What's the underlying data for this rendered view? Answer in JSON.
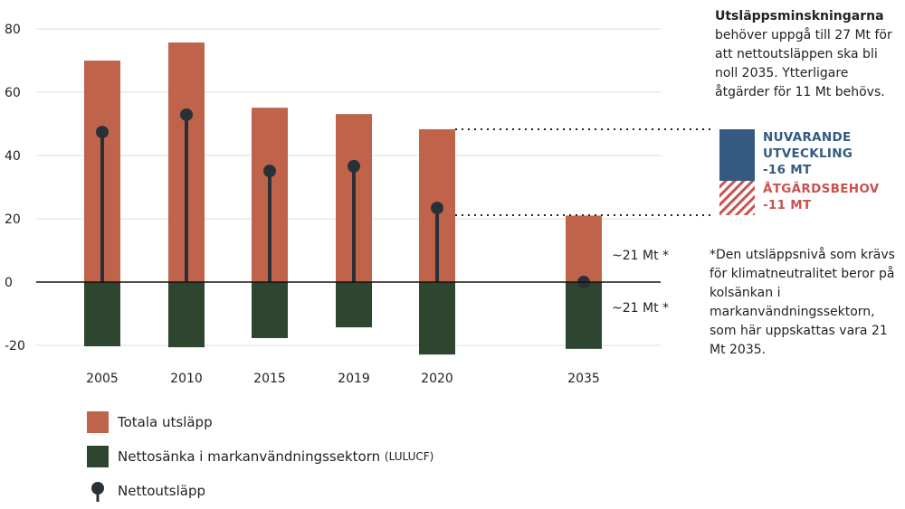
{
  "chart_data": {
    "type": "bar",
    "categories": [
      "2005",
      "2010",
      "2015",
      "2019",
      "2020",
      "2035"
    ],
    "series": [
      {
        "name": "Totala utsläpp",
        "values": [
          70,
          75.7,
          55.1,
          53.1,
          48.3,
          21
        ],
        "color": "#c0634b"
      },
      {
        "name": "Nettosänka i markanvändningssektorn",
        "name_suffix": "(LULUCF)",
        "values": [
          -20.3,
          -20.6,
          -17.7,
          -14.3,
          -22.9,
          -21.1
        ],
        "color": "#2e4630"
      },
      {
        "name": "Nettoutsläpp",
        "values": [
          47.4,
          52.9,
          35.1,
          36.6,
          23.4,
          0
        ],
        "color": "#2a3038",
        "marker": "lollipop"
      }
    ],
    "ylim": [
      -20,
      80
    ],
    "yticks": [
      "80",
      "60",
      "40",
      "20",
      "0",
      "-20"
    ],
    "grid": true,
    "legend": "bottom-left",
    "annotations": {
      "pos_2035": "~21 Mt *",
      "neg_2035": "~21 Mt *",
      "nuvarande": [
        "NUVARANDE",
        "UTVECKLING",
        "-16 MT"
      ],
      "nuvarande_color": "#345a82",
      "atgard": [
        "ÅTGÄRDSBEHOV",
        "-11 MT"
      ],
      "atgard_color": "#c9524e"
    }
  },
  "note": {
    "title": "Utsläppsminskningarna",
    "body": "behöver uppgå till 27 Mt för att nettoutsläppen ska bli noll 2035. Ytterligare åtgärder för 11 Mt behövs."
  },
  "footnote": "*Den utsläppsnivå som krävs för klimatneutralitet beror på kolsänkan i markanvändningssektorn, som här uppskattas vara 21 Mt 2035."
}
